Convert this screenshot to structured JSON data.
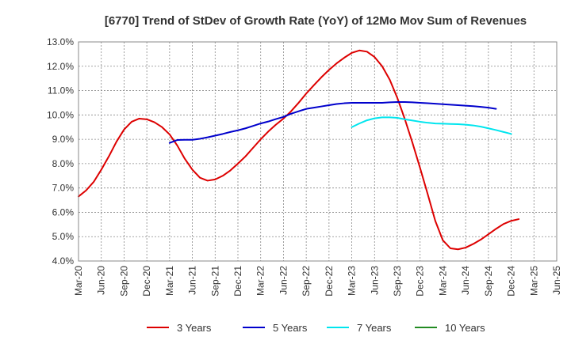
{
  "chart_data": {
    "type": "line",
    "title": "[6770]  Trend of StDev of Growth Rate (YoY) of 12Mo Mov Sum of Revenues",
    "xlabel": "",
    "ylabel": "",
    "ylim": [
      4.0,
      13.0
    ],
    "y_ticks": [
      "4.0%",
      "5.0%",
      "6.0%",
      "7.0%",
      "8.0%",
      "9.0%",
      "10.0%",
      "11.0%",
      "12.0%",
      "13.0%"
    ],
    "x_ticks": [
      "Mar-20",
      "Jun-20",
      "Sep-20",
      "Dec-20",
      "Mar-21",
      "Jun-21",
      "Sep-21",
      "Dec-21",
      "Mar-22",
      "Jun-22",
      "Sep-22",
      "Dec-22",
      "Mar-23",
      "Jun-23",
      "Sep-23",
      "Dec-23",
      "Mar-24",
      "Jun-24",
      "Sep-24",
      "Dec-24",
      "Mar-25",
      "Jun-25"
    ],
    "grid": true,
    "legend_position": "bottom",
    "series": [
      {
        "name": "3 Years",
        "color": "#dd0000",
        "start_index": 0,
        "values": [
          6.65,
          6.9,
          7.25,
          7.75,
          8.3,
          8.9,
          9.4,
          9.72,
          9.85,
          9.82,
          9.7,
          9.5,
          9.2,
          8.75,
          8.2,
          7.75,
          7.42,
          7.3,
          7.35,
          7.5,
          7.72,
          8.0,
          8.3,
          8.65,
          9.0,
          9.32,
          9.6,
          9.85,
          10.15,
          10.5,
          10.88,
          11.22,
          11.55,
          11.85,
          12.12,
          12.35,
          12.55,
          12.65,
          12.6,
          12.38,
          12.0,
          11.45,
          10.7,
          9.82,
          8.85,
          7.82,
          6.75,
          5.65,
          4.85,
          4.52,
          4.48,
          4.55,
          4.7,
          4.88,
          5.1,
          5.32,
          5.52,
          5.65,
          5.72
        ]
      },
      {
        "name": "5 Years",
        "color": "#0000cc",
        "start_index": 12,
        "values": [
          8.85,
          8.97,
          8.98,
          8.98,
          9.02,
          9.08,
          9.15,
          9.22,
          9.3,
          9.37,
          9.45,
          9.55,
          9.65,
          9.73,
          9.83,
          9.92,
          10.05,
          10.15,
          10.25,
          10.3,
          10.35,
          10.4,
          10.45,
          10.48,
          10.5,
          10.5,
          10.5,
          10.5,
          10.5,
          10.52,
          10.53,
          10.53,
          10.52,
          10.5,
          10.48,
          10.46,
          10.44,
          10.42,
          10.4,
          10.38,
          10.36,
          10.33,
          10.3,
          10.25
        ]
      },
      {
        "name": "7 Years",
        "color": "#00e5ee",
        "start_index": 36,
        "values": [
          9.5,
          9.65,
          9.78,
          9.86,
          9.9,
          9.9,
          9.88,
          9.82,
          9.77,
          9.72,
          9.68,
          9.65,
          9.64,
          9.63,
          9.62,
          9.6,
          9.57,
          9.52,
          9.45,
          9.38,
          9.3,
          9.22
        ]
      },
      {
        "name": "10 Years",
        "color": "#228b22",
        "start_index": 0,
        "values": []
      }
    ]
  }
}
